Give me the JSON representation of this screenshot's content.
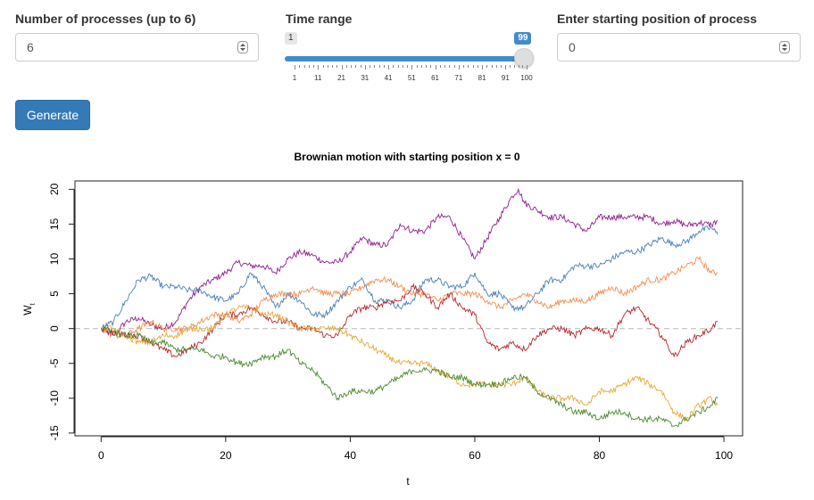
{
  "controls": {
    "processes": {
      "label": "Number of processes (up to 6)",
      "value": "6"
    },
    "time_range": {
      "label": "Time range",
      "min": 1,
      "max": 100,
      "value": 99,
      "min_label": "1",
      "value_label": "99",
      "tick_labels": [
        "1",
        "11",
        "21",
        "31",
        "41",
        "51",
        "61",
        "71",
        "81",
        "91",
        "100"
      ]
    },
    "start_position": {
      "label": "Enter starting position of process",
      "value": "0"
    },
    "generate_label": "Generate"
  },
  "chart_data": {
    "type": "line",
    "title": "Brownian motion with starting position x =  0",
    "xlabel": "t",
    "ylabel": "W",
    "ylabel_subscript": "t",
    "xlim": [
      -4.2,
      103
    ],
    "ylim": [
      -15.4,
      21.2
    ],
    "xticks": [
      0,
      20,
      40,
      60,
      80,
      100
    ],
    "yticks": [
      -15,
      -10,
      -5,
      0,
      5,
      10,
      15,
      20
    ],
    "reference_line": {
      "y": 0,
      "style": "dashed",
      "color": "#c8c8c8"
    },
    "series": [
      {
        "color": "#8e1f8c",
        "x": [
          0,
          2,
          4,
          6,
          8,
          10,
          12,
          14,
          16,
          18,
          20,
          22,
          24,
          26,
          28,
          30,
          32,
          34,
          36,
          38,
          40,
          42,
          44,
          46,
          48,
          50,
          52,
          54,
          56,
          58,
          60,
          62,
          64,
          66,
          67,
          68,
          70,
          72,
          74,
          76,
          78,
          80,
          82,
          84,
          86,
          88,
          90,
          92,
          94,
          96,
          98,
          99
        ],
        "y": [
          0,
          -1,
          1,
          1.5,
          0.5,
          0,
          1,
          4,
          6,
          7,
          8,
          9.5,
          9,
          9,
          8,
          10,
          11,
          10.5,
          9.5,
          9.5,
          11,
          13,
          12,
          12,
          15,
          14,
          14,
          16,
          16,
          13,
          10,
          13,
          16,
          19,
          20,
          18,
          17,
          16,
          16,
          15,
          14,
          16,
          16,
          16,
          16,
          16,
          15,
          15.5,
          14.8,
          15.2,
          14.9,
          15.5
        ]
      },
      {
        "color": "#4a7db8",
        "x": [
          0,
          2,
          4,
          6,
          8,
          10,
          12,
          14,
          16,
          18,
          20,
          22,
          24,
          26,
          28,
          30,
          32,
          34,
          36,
          38,
          40,
          42,
          44,
          46,
          48,
          50,
          52,
          54,
          56,
          58,
          60,
          62,
          64,
          66,
          68,
          70,
          72,
          74,
          76,
          78,
          80,
          82,
          84,
          86,
          88,
          90,
          92,
          94,
          96,
          98,
          99
        ],
        "y": [
          0,
          1,
          4,
          7,
          7.5,
          6,
          6,
          5.5,
          5.5,
          4.5,
          4,
          5,
          8,
          6,
          3,
          5,
          4,
          2,
          2,
          4,
          6,
          7,
          4,
          4,
          3,
          4,
          7,
          7,
          6,
          6,
          8,
          5,
          5,
          3,
          3,
          5,
          7,
          7,
          9,
          9,
          9,
          10,
          11,
          11,
          12,
          13,
          12,
          12.5,
          14,
          14.5,
          13.5
        ]
      },
      {
        "color": "#f28d52",
        "x": [
          0,
          2,
          4,
          6,
          8,
          10,
          12,
          14,
          16,
          18,
          20,
          22,
          24,
          26,
          28,
          30,
          32,
          34,
          36,
          38,
          40,
          42,
          44,
          46,
          48,
          50,
          52,
          54,
          56,
          58,
          60,
          62,
          64,
          66,
          68,
          70,
          72,
          74,
          76,
          78,
          80,
          82,
          84,
          86,
          88,
          90,
          92,
          94,
          96,
          98,
          99
        ],
        "y": [
          0,
          -1,
          -1,
          0,
          1,
          0,
          0,
          0,
          1,
          2,
          2,
          1,
          2,
          4,
          5,
          5,
          5,
          6,
          5,
          5,
          5,
          6,
          7,
          7,
          6,
          5,
          5,
          4,
          5,
          5,
          5,
          4,
          3,
          4,
          5,
          4,
          3,
          4,
          4,
          4,
          5,
          6,
          5,
          6,
          7,
          7,
          8,
          9,
          10,
          8,
          8
        ]
      },
      {
        "color": "#b7292f",
        "x": [
          0,
          2,
          4,
          6,
          8,
          10,
          12,
          14,
          16,
          18,
          20,
          22,
          24,
          26,
          28,
          30,
          32,
          34,
          36,
          38,
          40,
          42,
          44,
          46,
          48,
          50,
          52,
          54,
          56,
          58,
          60,
          62,
          64,
          66,
          68,
          70,
          72,
          74,
          76,
          78,
          80,
          82,
          84,
          86,
          88,
          90,
          92,
          94,
          96,
          98,
          99
        ],
        "y": [
          0,
          -0.5,
          -1,
          -1,
          -2,
          -3,
          -4,
          -3,
          -2,
          0,
          2,
          2,
          3,
          2,
          1,
          1,
          0,
          0,
          -1,
          -1,
          2,
          3,
          3,
          4,
          4,
          6,
          5,
          3,
          5,
          3,
          2,
          -2,
          -3,
          -2,
          -3,
          -1,
          0,
          0,
          -1,
          0,
          0,
          -1,
          2,
          3,
          1,
          -1,
          -4,
          -2,
          -1,
          0,
          1
        ]
      },
      {
        "color": "#e5a93b",
        "x": [
          0,
          2,
          4,
          6,
          8,
          10,
          12,
          14,
          16,
          18,
          20,
          22,
          24,
          26,
          28,
          30,
          32,
          34,
          36,
          38,
          40,
          42,
          44,
          46,
          48,
          50,
          52,
          54,
          56,
          58,
          60,
          62,
          64,
          66,
          68,
          70,
          72,
          74,
          76,
          78,
          80,
          82,
          84,
          86,
          88,
          90,
          92,
          94,
          96,
          98,
          99
        ],
        "y": [
          0,
          0,
          -1,
          -2,
          -2,
          -1,
          -1,
          0,
          0,
          0,
          2,
          3,
          3,
          2,
          2,
          1,
          0,
          0,
          0,
          0,
          -1,
          -2,
          -3,
          -4,
          -5,
          -5,
          -5,
          -6,
          -7,
          -8,
          -8,
          -8,
          -8,
          -8,
          -7,
          -9,
          -10,
          -10,
          -10,
          -11,
          -9,
          -9,
          -8,
          -7,
          -8,
          -9,
          -12,
          -13,
          -11,
          -10,
          -11
        ]
      },
      {
        "color": "#4a8a2f",
        "x": [
          0,
          2,
          4,
          6,
          8,
          10,
          12,
          14,
          16,
          18,
          20,
          22,
          24,
          26,
          28,
          30,
          32,
          34,
          36,
          38,
          40,
          42,
          44,
          46,
          48,
          50,
          52,
          54,
          56,
          58,
          60,
          62,
          64,
          66,
          68,
          70,
          72,
          74,
          76,
          78,
          80,
          82,
          84,
          86,
          88,
          90,
          92,
          94,
          96,
          98,
          99
        ],
        "y": [
          0,
          -0.5,
          -1,
          -1,
          -2,
          -2,
          -3,
          -3,
          -3,
          -4,
          -4,
          -5,
          -5,
          -4,
          -4,
          -3,
          -5,
          -6,
          -8,
          -10,
          -9,
          -9,
          -9,
          -8,
          -7,
          -6,
          -6,
          -6,
          -7,
          -7,
          -8,
          -8,
          -8,
          -7,
          -7,
          -9,
          -10,
          -11,
          -12,
          -12,
          -13,
          -12,
          -12,
          -13,
          -13,
          -13,
          -14,
          -13,
          -12,
          -11,
          -10
        ]
      }
    ]
  }
}
